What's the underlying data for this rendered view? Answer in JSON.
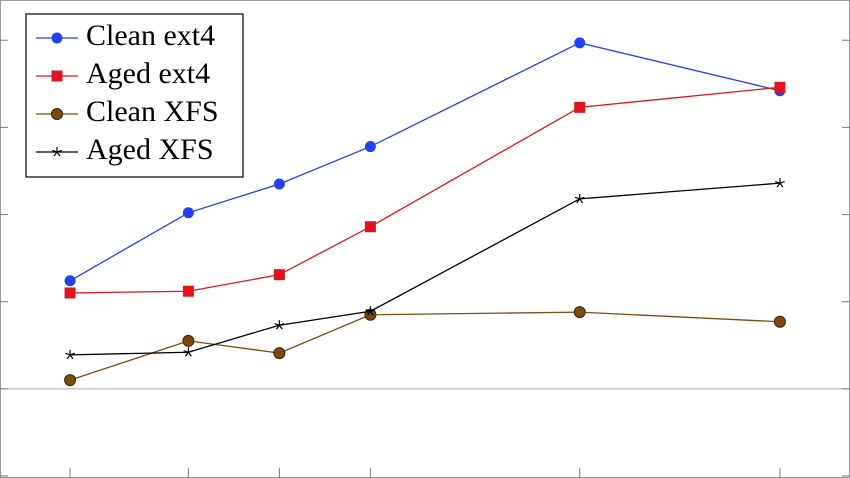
{
  "chart_data": {
    "type": "line",
    "x": [
      0,
      1.3,
      2.3,
      3.3,
      5.6,
      7.8
    ],
    "xlim": [
      -0.77,
      8.57
    ],
    "xticks": [
      0,
      1.3,
      2.3,
      3.3,
      5.6,
      7.8
    ],
    "ylim": [
      -1.0,
      4.45
    ],
    "yticks": [
      -1,
      0,
      1,
      2,
      3,
      4
    ],
    "legend": "upper left",
    "series": [
      {
        "name": "Clean ext4",
        "color": "#2340f0",
        "marker": "circle",
        "values": [
          1.24,
          2.02,
          2.35,
          2.78,
          3.97,
          3.42
        ]
      },
      {
        "name": "Aged ext4",
        "color": "#e0141c",
        "marker": "square",
        "values": [
          1.1,
          1.12,
          1.31,
          1.86,
          3.23,
          3.46
        ]
      },
      {
        "name": "Clean XFS",
        "color": "#7a4a10",
        "marker": "circle-outlined",
        "values": [
          0.1,
          0.55,
          0.41,
          0.85,
          0.88,
          0.77
        ]
      },
      {
        "name": "Aged XFS",
        "color": "#000000",
        "marker": "star",
        "values": [
          0.39,
          0.42,
          0.73,
          0.89,
          2.18,
          2.36
        ]
      }
    ]
  }
}
